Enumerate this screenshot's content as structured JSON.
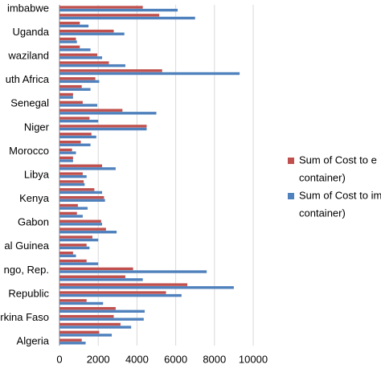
{
  "chart_data": {
    "type": "hbar",
    "categories": [
      "imbabwe",
      null,
      null,
      "Uganda",
      null,
      null,
      "waziland",
      null,
      null,
      "uth Africa",
      null,
      null,
      "Senegal",
      null,
      null,
      "Niger",
      null,
      null,
      "Morocco",
      null,
      null,
      "Libya",
      null,
      null,
      "Kenya",
      null,
      null,
      "Gabon",
      null,
      null,
      "al Guinea",
      null,
      null,
      "ngo, Rep.",
      null,
      null,
      "Republic",
      null,
      null,
      "rkina Faso",
      null,
      null,
      "Algeria"
    ],
    "series": [
      {
        "name": [
          "Sum of Cost to e",
          "container)"
        ],
        "color": "#c0504d",
        "values": [
          4300,
          5150,
          1050,
          2800,
          850,
          1050,
          1950,
          2550,
          5300,
          1850,
          1150,
          700,
          1200,
          3250,
          1550,
          4500,
          1650,
          1100,
          650,
          700,
          2200,
          1200,
          1250,
          1800,
          2300,
          950,
          900,
          2150,
          2400,
          1700,
          1400,
          700,
          1400,
          3800,
          3400,
          6600,
          5500,
          1400,
          2900,
          2800,
          3150,
          2050,
          1150
        ]
      },
      {
        "name": [
          "Sum of Cost to im",
          "container)"
        ],
        "color": "#4f81bd",
        "values": [
          6100,
          7000,
          1500,
          3350,
          900,
          1600,
          2200,
          3400,
          9300,
          2050,
          1600,
          700,
          1950,
          5000,
          2000,
          4500,
          1900,
          1600,
          850,
          700,
          2900,
          1400,
          1300,
          2200,
          2350,
          1450,
          1200,
          2200,
          2950,
          2000,
          1550,
          850,
          2000,
          7600,
          4300,
          9000,
          6300,
          2250,
          4400,
          4350,
          3700,
          2700,
          1350
        ]
      }
    ],
    "xlim": [
      0,
      10000
    ],
    "xticks": [
      0,
      2000,
      4000,
      6000,
      8000,
      10000
    ],
    "grid": true
  }
}
